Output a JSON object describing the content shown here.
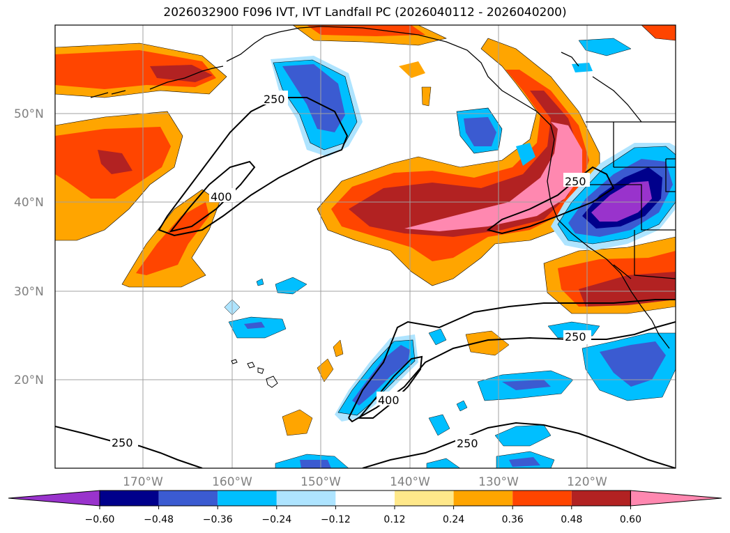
{
  "title": "2026032900 F096 IVT, IVT Landfall PC (2026040112 - 2026040200)",
  "map": {
    "lat_labels": [
      "50°N",
      "40°N",
      "30°N",
      "20°N"
    ],
    "lon_labels": [
      "170°W",
      "160°W",
      "150°W",
      "140°W",
      "130°W",
      "120°W"
    ],
    "contour_labels": [
      "250",
      "400",
      "250",
      "250",
      "400",
      "250",
      "250"
    ]
  },
  "colorbar": {
    "tick_labels": [
      "−0.60",
      "−0.48",
      "−0.36",
      "−0.24",
      "−0.12",
      "0.12",
      "0.24",
      "0.36",
      "0.48",
      "0.60"
    ],
    "colors": [
      "#9933cc",
      "#00008b",
      "#3b5bd1",
      "#00bfff",
      "#aee4ff",
      "#ffffff",
      "#ffe88a",
      "#ffa500",
      "#ff4500",
      "#b22222",
      "#ff88b0"
    ]
  }
}
